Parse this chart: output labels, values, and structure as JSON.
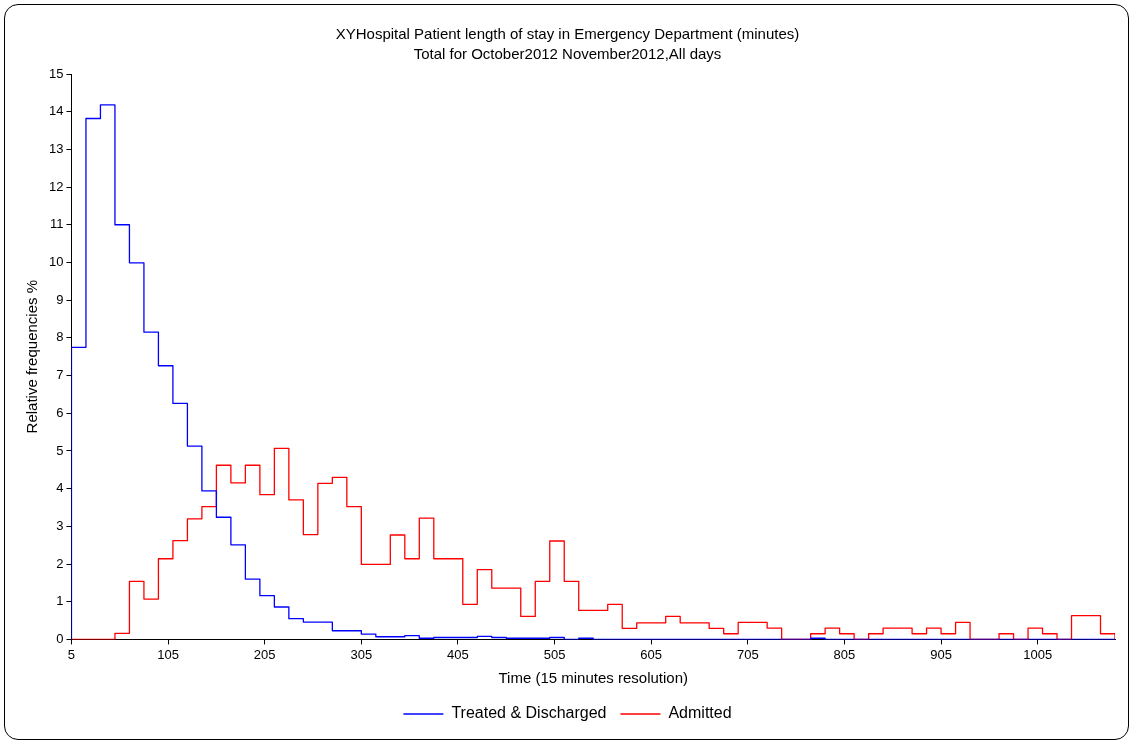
{
  "chart_data": {
    "type": "histogram",
    "title": "XYHospital Patient length of stay in Emergency Department (minutes)",
    "subtitle": "Total for October2012 November2012,All days",
    "xlabel": "Time (15 minutes resolution)",
    "ylabel": "Relative frequencies %",
    "bins": [
      5,
      20,
      35,
      50,
      65,
      80,
      95,
      110,
      125,
      140,
      155,
      170,
      185,
      200,
      215,
      230,
      245,
      260,
      275,
      290,
      305,
      320,
      335,
      350,
      365,
      380,
      395,
      410,
      425,
      440,
      455,
      470,
      485,
      500,
      515,
      530,
      545,
      560,
      575,
      590,
      605,
      620,
      635,
      650,
      665,
      680,
      695,
      710,
      725,
      740,
      755,
      770,
      785,
      800,
      815,
      830,
      845,
      860,
      875,
      890,
      905,
      920,
      935,
      950,
      965,
      980,
      995,
      1010,
      1025,
      1040,
      1055,
      1070,
      1085
    ],
    "series": [
      {
        "name": "Treated & Discharged",
        "color": "#0000ff",
        "values": [
          7.75,
          13.82,
          14.18,
          11.0,
          9.99,
          8.15,
          7.26,
          6.26,
          5.13,
          3.94,
          3.24,
          2.51,
          1.6,
          1.16,
          0.86,
          0.55,
          0.46,
          0.46,
          0.23,
          0.23,
          0.14,
          0.07,
          0.07,
          0.1,
          0.03,
          0.05,
          0.05,
          0.05,
          0.08,
          0.05,
          0.03,
          0.03,
          0.03,
          0.05,
          0,
          0.03,
          0,
          0,
          0,
          0,
          0,
          0,
          0,
          0,
          0,
          0,
          0,
          0,
          0,
          0,
          0,
          0.03,
          0,
          0,
          0,
          0,
          0,
          0,
          0,
          0,
          0,
          0,
          0,
          0,
          0,
          0,
          0,
          0,
          0,
          0,
          0,
          0
        ]
      },
      {
        "name": "Admitted",
        "color": "#ff0000",
        "values": [
          0,
          0,
          0,
          0.16,
          1.54,
          1.07,
          2.14,
          2.62,
          3.2,
          3.52,
          4.62,
          4.15,
          4.62,
          3.84,
          5.07,
          3.7,
          2.78,
          4.14,
          4.3,
          3.52,
          1.99,
          1.99,
          2.77,
          2.14,
          3.22,
          2.14,
          2.14,
          0.93,
          1.85,
          1.36,
          1.36,
          0.61,
          1.54,
          2.61,
          1.54,
          0.77,
          0.77,
          0.93,
          0.29,
          0.44,
          0.44,
          0.61,
          0.44,
          0.44,
          0.29,
          0.15,
          0.45,
          0.45,
          0.3,
          0,
          0,
          0.15,
          0.3,
          0.15,
          0,
          0.15,
          0.3,
          0.3,
          0.15,
          0.3,
          0.15,
          0.45,
          0,
          0,
          0.15,
          0,
          0.3,
          0.15,
          0,
          0.63,
          0.63,
          0.15
        ]
      }
    ],
    "xlim": [
      5,
      1085
    ],
    "xticks": [
      5,
      105,
      205,
      305,
      405,
      505,
      605,
      705,
      805,
      905,
      1005
    ],
    "ylim": [
      0,
      15
    ],
    "yticks": [
      0,
      1,
      2,
      3,
      4,
      5,
      6,
      7,
      8,
      9,
      10,
      11,
      12,
      13,
      14,
      15
    ],
    "grid": false,
    "legend": "bottom"
  }
}
